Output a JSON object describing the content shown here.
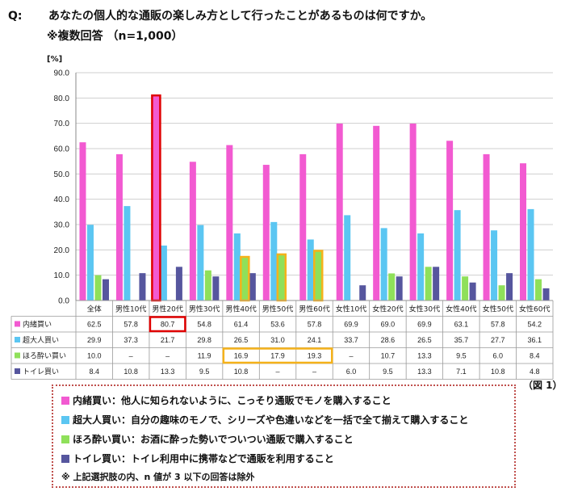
{
  "question": {
    "label": "Q:",
    "text": "あなたの個人的な通販の楽しみ方として行ったことがあるものは何ですか。",
    "subtext": "※複数回答 （n=1,000）"
  },
  "unit_label": "[%]",
  "figure_label": "（図 1）",
  "colors": {
    "naisho": "#f25ad1",
    "chodaijin": "#5bc6f2",
    "horoyoi": "#8fe05a",
    "toilet": "#56569e",
    "highlight_red": "#e00000",
    "highlight_orange": "#f5b21a",
    "legend_border": "#c0504d"
  },
  "chart_data": {
    "type": "bar",
    "categories": [
      "全体",
      "男性10代",
      "男性20代",
      "男性30代",
      "男性40代",
      "男性50代",
      "男性60代",
      "女性10代",
      "女性20代",
      "女性30代",
      "女性40代",
      "女性50代",
      "女性60代"
    ],
    "ylim": [
      0,
      90
    ],
    "yticks": [
      "0.0",
      "10.0",
      "20.0",
      "30.0",
      "40.0",
      "50.0",
      "60.0",
      "70.0",
      "80.0",
      "90.0"
    ],
    "grid": true,
    "series": [
      {
        "name": "内緒買い",
        "values": [
          62.5,
          57.8,
          80.7,
          54.8,
          61.4,
          53.6,
          57.8,
          69.9,
          69.0,
          69.9,
          63.1,
          57.8,
          54.2
        ],
        "display": [
          "62.5",
          "57.8",
          "80.7",
          "54.8",
          "61.4",
          "53.6",
          "57.8",
          "69.9",
          "69.0",
          "69.9",
          "63.1",
          "57.8",
          "54.2"
        ]
      },
      {
        "name": "超大人買い",
        "values": [
          29.9,
          37.3,
          21.7,
          29.8,
          26.5,
          31.0,
          24.1,
          33.7,
          28.6,
          26.5,
          35.7,
          27.7,
          36.1
        ],
        "display": [
          "29.9",
          "37.3",
          "21.7",
          "29.8",
          "26.5",
          "31.0",
          "24.1",
          "33.7",
          "28.6",
          "26.5",
          "35.7",
          "27.7",
          "36.1"
        ]
      },
      {
        "name": "ほろ酔い買い",
        "values": [
          10.0,
          null,
          null,
          11.9,
          16.9,
          17.9,
          19.3,
          null,
          10.7,
          13.3,
          9.5,
          6.0,
          8.4
        ],
        "display": [
          "10.0",
          "–",
          "–",
          "11.9",
          "16.9",
          "17.9",
          "19.3",
          "–",
          "10.7",
          "13.3",
          "9.5",
          "6.0",
          "8.4"
        ]
      },
      {
        "name": "トイレ買い",
        "values": [
          8.4,
          10.8,
          13.3,
          9.5,
          10.8,
          null,
          null,
          6.0,
          9.5,
          13.3,
          7.1,
          10.8,
          4.8
        ],
        "display": [
          "8.4",
          "10.8",
          "13.3",
          "9.5",
          "10.8",
          "–",
          "–",
          "6.0",
          "9.5",
          "13.3",
          "7.1",
          "10.8",
          "4.8"
        ]
      }
    ],
    "highlights": [
      {
        "series": 0,
        "categories": [
          2
        ],
        "color": "red"
      },
      {
        "series": 2,
        "categories": [
          4,
          5,
          6
        ],
        "color": "orange"
      }
    ]
  },
  "legend": {
    "items": [
      {
        "key": "naisho",
        "text": "内緒買い：他人に知られないように、こっそり通販でモノを購入すること"
      },
      {
        "key": "chodaijin",
        "text": "超大人買い：自分の趣味のモノで、シリーズや色違いなどを一括で全て揃えて購入すること"
      },
      {
        "key": "horoyoi",
        "text": "ほろ酔い買い：お酒に酔った勢いでついつい通販で購入すること"
      },
      {
        "key": "toilet",
        "text": "トイレ買い：トイレ利用中に携帯などで通販を利用すること"
      }
    ],
    "note": "※ 上記選択肢の内、n 値が 3 以下の回答は除外"
  }
}
